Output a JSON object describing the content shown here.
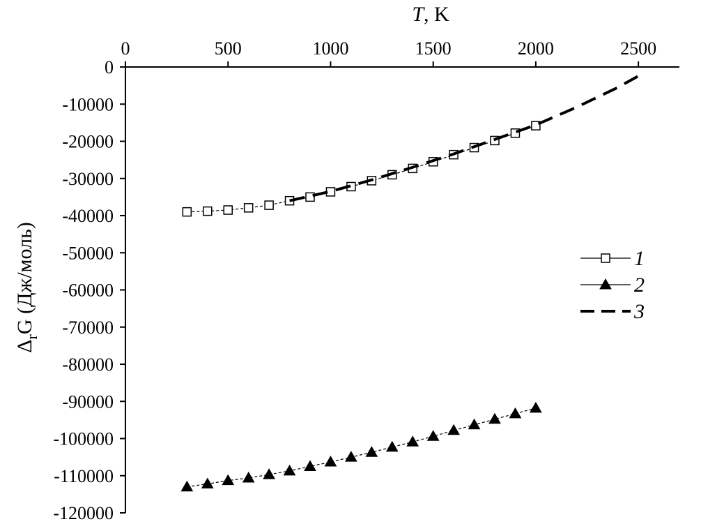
{
  "chart_data": {
    "type": "scatter",
    "x_axis": {
      "label": "T, K",
      "label_italic_part": "T",
      "label_rest": ", K",
      "position": "top",
      "range": [
        0,
        2700
      ],
      "ticks": [
        0,
        500,
        1000,
        1500,
        2000,
        2500
      ],
      "tick_labels": [
        "0",
        "500",
        "1000",
        "1500",
        "2000",
        "2500"
      ]
    },
    "y_axis": {
      "label": "ΔrG (Дж/моль)",
      "label_main": "Δ",
      "label_sub": "r",
      "label_rest": "G (Дж/моль)",
      "range": [
        -120000,
        0
      ],
      "ticks": [
        0,
        -10000,
        -20000,
        -30000,
        -40000,
        -50000,
        -60000,
        -70000,
        -80000,
        -90000,
        -100000,
        -110000,
        -120000
      ],
      "tick_labels": [
        "0",
        "-10000",
        "-20000",
        "-30000",
        "-40000",
        "-50000",
        "-60000",
        "-70000",
        "-80000",
        "-90000",
        "-100000",
        "-110000",
        "-120000"
      ]
    },
    "grid": false,
    "legend_position": "right",
    "series": [
      {
        "name": "1",
        "marker": "open-square",
        "line": "thin-dashed",
        "color": "#000000",
        "x": [
          300,
          400,
          500,
          600,
          700,
          800,
          900,
          1000,
          1100,
          1200,
          1300,
          1400,
          1500,
          1600,
          1700,
          1800,
          1900,
          2000
        ],
        "y": [
          -39000,
          -38800,
          -38500,
          -37900,
          -37200,
          -36000,
          -35000,
          -33600,
          -32200,
          -30600,
          -29000,
          -27300,
          -25500,
          -23600,
          -21700,
          -19800,
          -17800,
          -15800
        ]
      },
      {
        "name": "2",
        "marker": "filled-triangle",
        "line": "thin-dashed",
        "color": "#000000",
        "x": [
          300,
          400,
          500,
          600,
          700,
          800,
          900,
          1000,
          1100,
          1200,
          1300,
          1400,
          1500,
          1600,
          1700,
          1800,
          1900,
          2000
        ],
        "y": [
          -113000,
          -112200,
          -111300,
          -110600,
          -109700,
          -108700,
          -107500,
          -106300,
          -105000,
          -103700,
          -102300,
          -100900,
          -99400,
          -97800,
          -96300,
          -94800,
          -93300,
          -91800
        ]
      },
      {
        "name": "3",
        "marker": "none",
        "line": "thick-dashed",
        "color": "#000000",
        "x": [
          800,
          1000,
          1200,
          1400,
          1600,
          1800,
          2000,
          2200,
          2400,
          2530
        ],
        "y": [
          -36000,
          -33500,
          -30400,
          -27000,
          -23400,
          -19500,
          -15600,
          -10800,
          -5500,
          -1500
        ]
      }
    ]
  }
}
